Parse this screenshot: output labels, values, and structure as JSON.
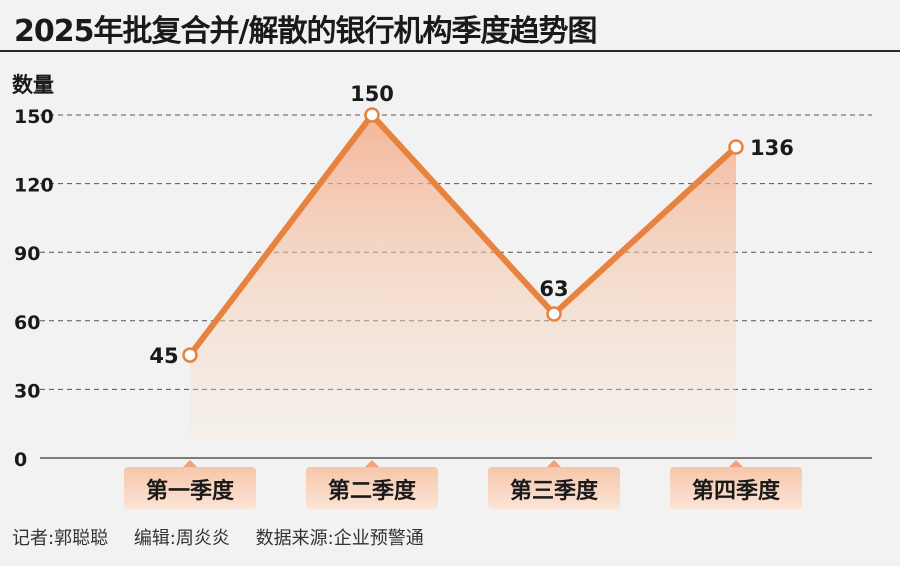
{
  "chart_data": {
    "type": "line",
    "title": "2025年批复合并/解散的银行机构季度趋势图",
    "ylabel": "数量",
    "categories": [
      "第一季度",
      "第二季度",
      "第三季度",
      "第四季度"
    ],
    "values": [
      45,
      150,
      63,
      136
    ],
    "yticks": [
      0,
      30,
      60,
      90,
      120,
      150
    ],
    "ylim": [
      0,
      150
    ],
    "grid": true,
    "colors": {
      "line": "#e8823f",
      "fill_top": "#f3b08e",
      "label_bg": "#f8d5c0"
    }
  },
  "footer": {
    "reporter": "记者:郭聪聪",
    "editor": "编辑:周炎炎",
    "source": "数据来源:企业预警通"
  }
}
